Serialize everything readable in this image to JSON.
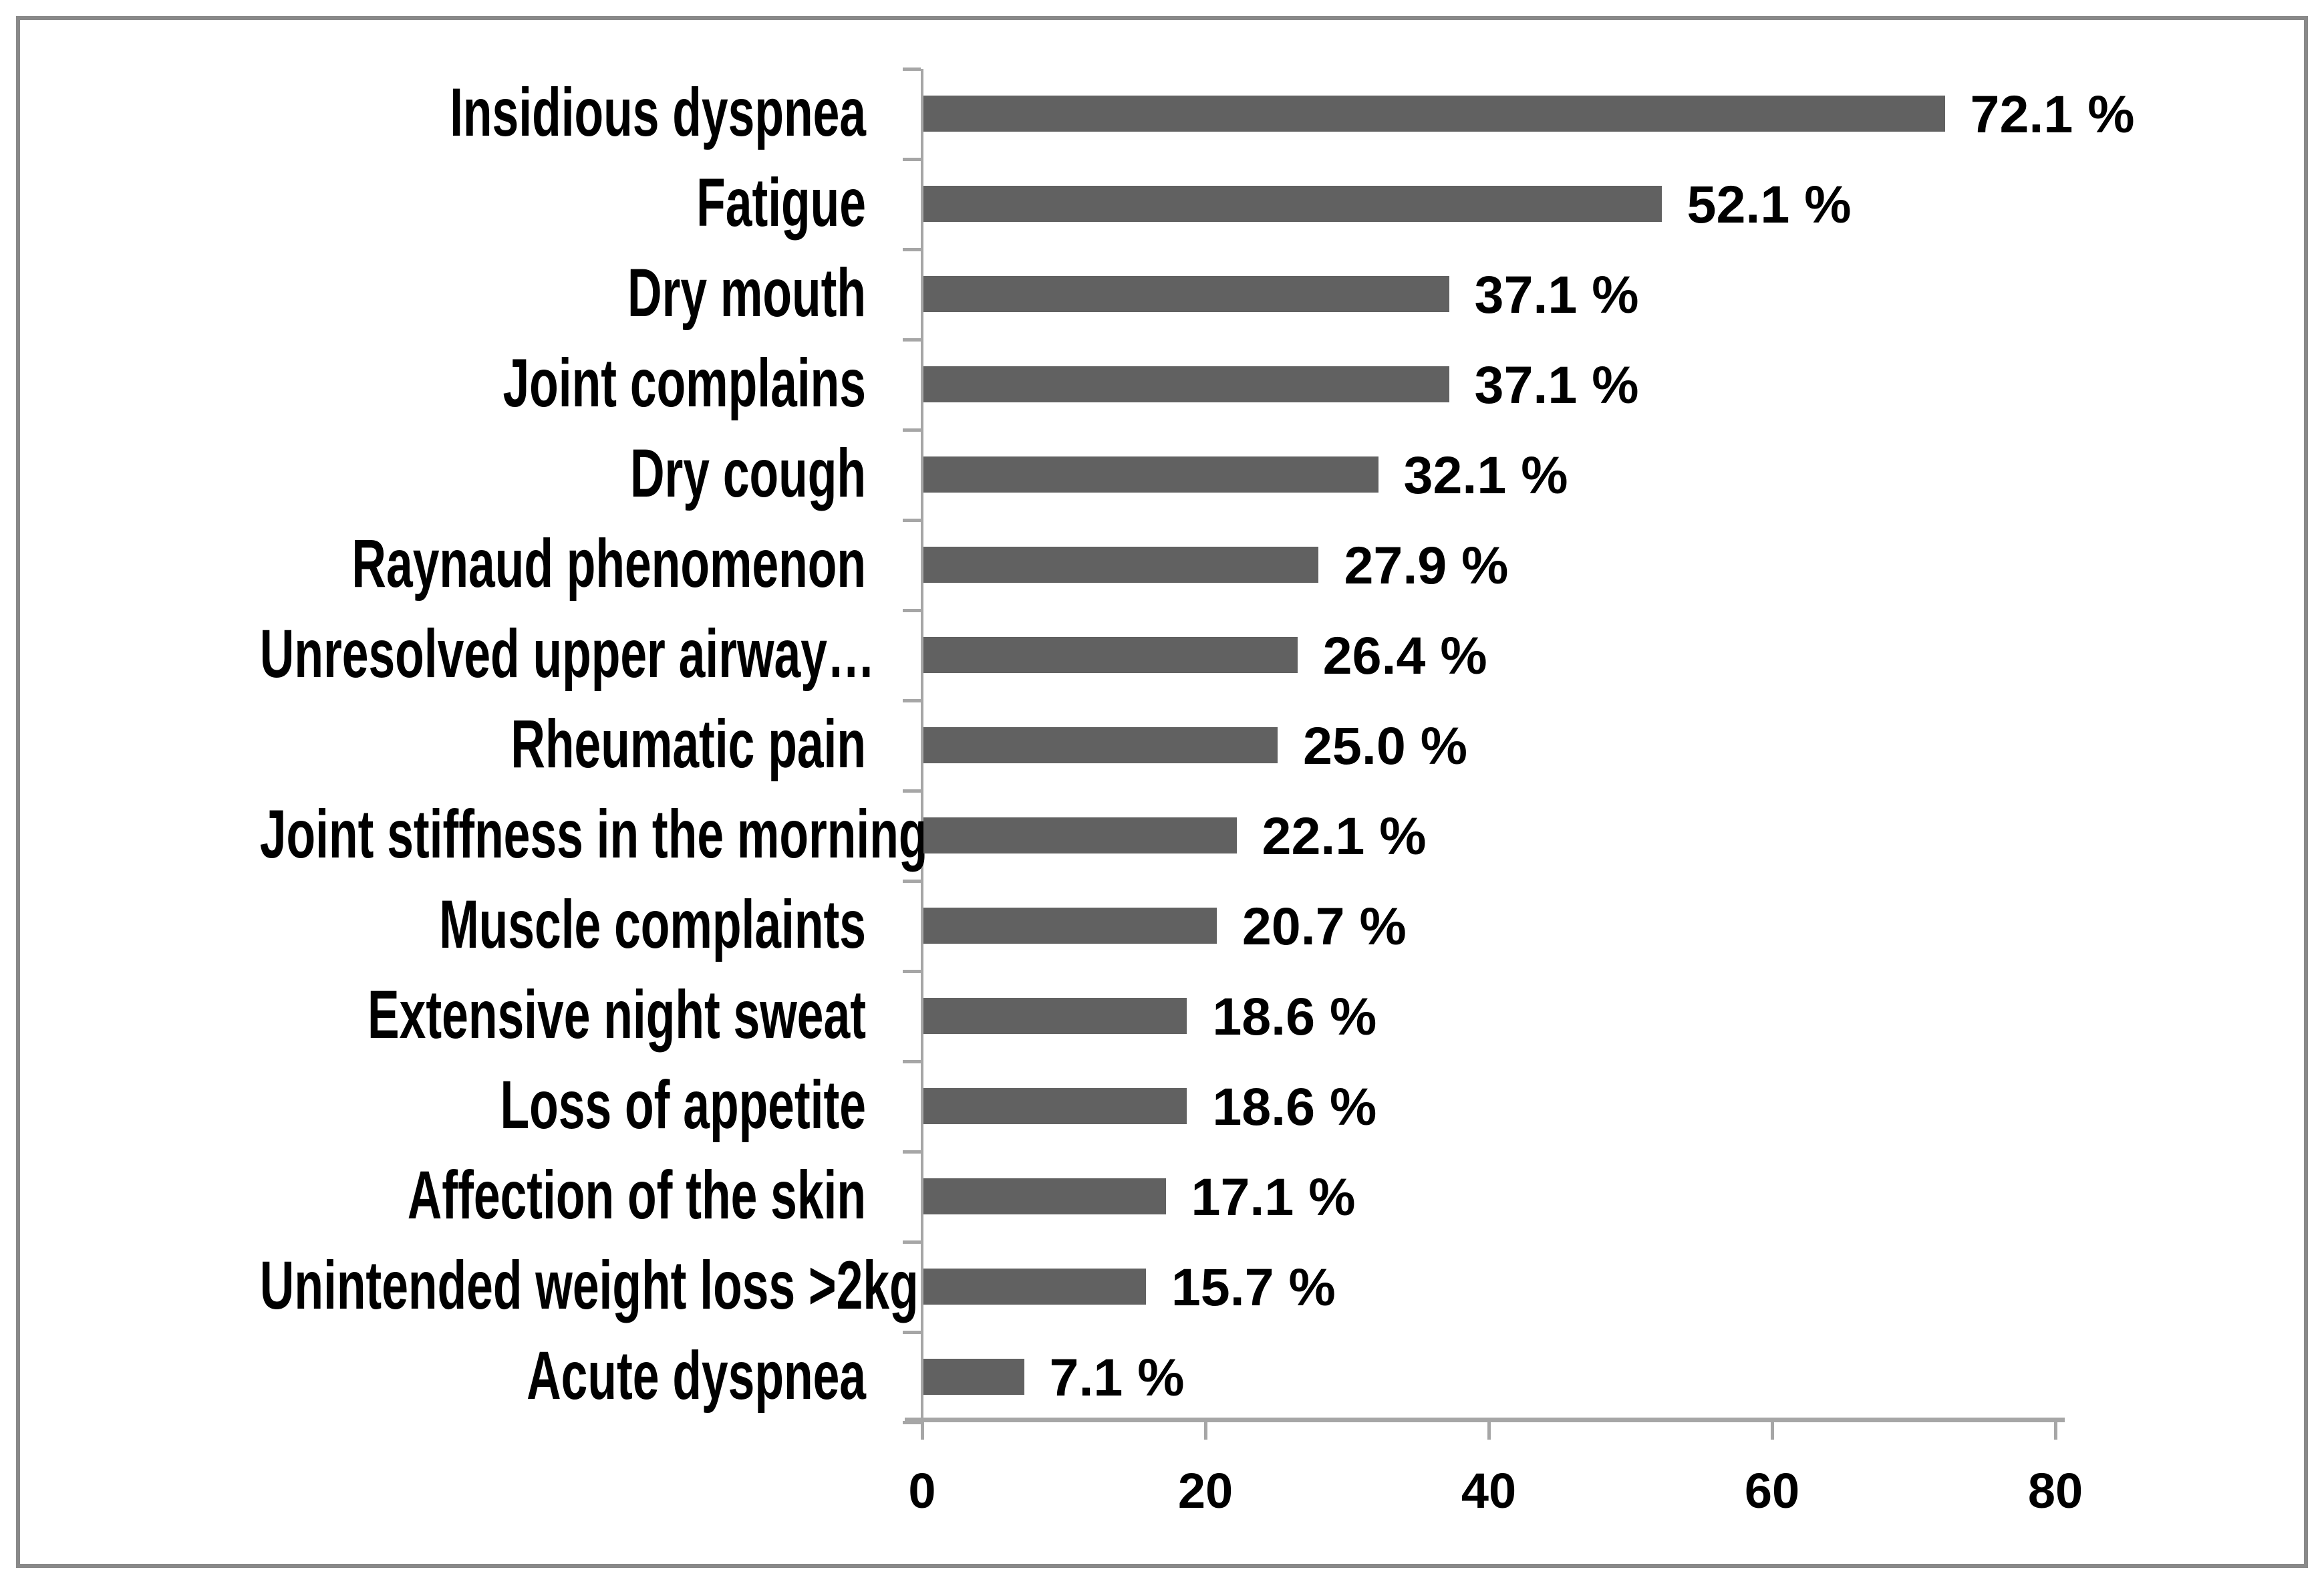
{
  "chart_data": {
    "type": "bar",
    "orientation": "horizontal",
    "title": "",
    "xlabel": "",
    "ylabel": "",
    "categories": [
      "Insidious dyspnea",
      "Fatigue",
      "Dry mouth",
      "Joint complains",
      "Dry cough",
      "Raynaud phenomenon",
      "Unresolved upper airway…",
      "Rheumatic pain",
      "Joint stiffness in the morning",
      "Muscle complaints",
      "Extensive night sweat",
      "Loss of appetite",
      "Affection of the skin",
      "Unintended weight loss >2kg",
      "Acute dyspnea"
    ],
    "values": [
      72.1,
      52.1,
      37.1,
      37.1,
      32.1,
      27.9,
      26.4,
      25.0,
      22.1,
      20.7,
      18.6,
      18.6,
      17.1,
      15.7,
      7.1
    ],
    "data_labels": [
      "72.1 %",
      "52.1 %",
      "37.1 %",
      "37.1 %",
      "32.1 %",
      "27.9 %",
      "26.4 %",
      "25.0 %",
      "22.1 %",
      "20.7 %",
      "18.6 %",
      "18.6 %",
      "17.1 %",
      "15.7 %",
      "7.1 %"
    ],
    "xlim": [
      0,
      80
    ],
    "x_ticks": [
      0,
      20,
      40,
      60,
      80
    ],
    "grid": false,
    "legend": false,
    "bar_color": "#616161",
    "axis_color": "#a6a6a6",
    "text_color": "#000000",
    "border_color": "#898989",
    "background": "#ffffff"
  }
}
